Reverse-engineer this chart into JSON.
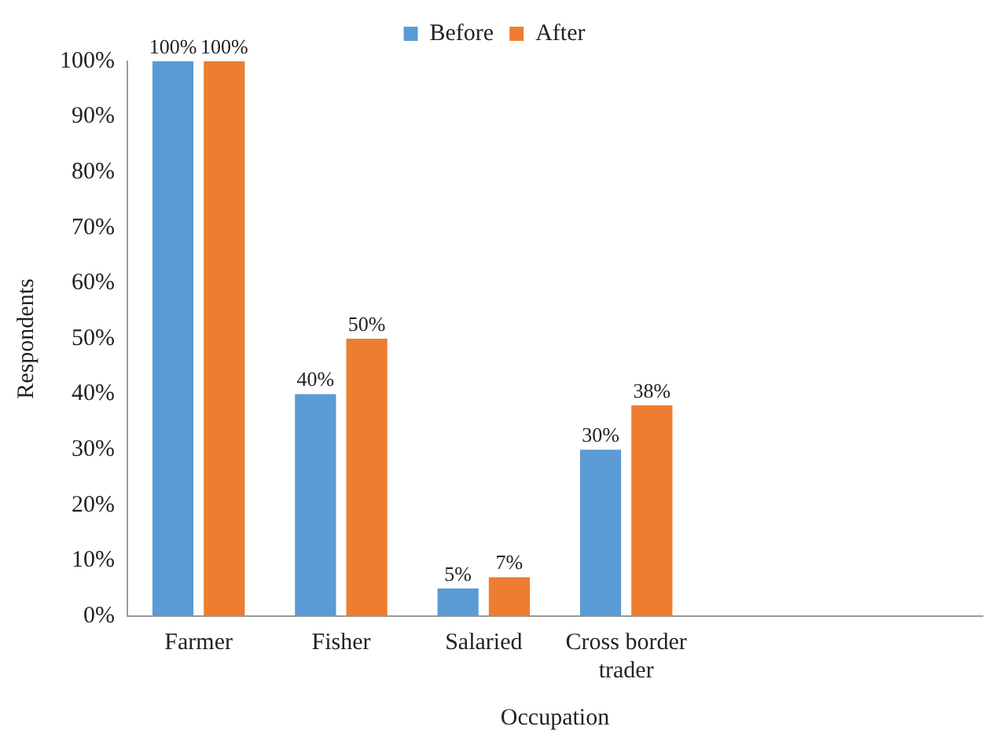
{
  "chart_data": {
    "type": "bar",
    "xlabel": "Occupation",
    "ylabel": "Respondents",
    "categories": [
      "Farmer",
      "Fisher",
      "Salaried",
      "Cross border trader",
      null,
      null
    ],
    "series": [
      {
        "name": "Before",
        "color": "#5b9bd5",
        "values": [
          100,
          40,
          5,
          30,
          null,
          null
        ],
        "value_labels": [
          "100%",
          "40%",
          "5%",
          "30%",
          null,
          null
        ]
      },
      {
        "name": "After",
        "color": "#ed7d31",
        "values": [
          100,
          50,
          7,
          38,
          null,
          null
        ],
        "value_labels": [
          "100%",
          "50%",
          "7%",
          "38%",
          null,
          null
        ]
      }
    ],
    "ylim": [
      0,
      100
    ],
    "yticks": [
      {
        "value": 0,
        "label": "0%"
      },
      {
        "value": 10,
        "label": "10%"
      },
      {
        "value": 20,
        "label": "20%"
      },
      {
        "value": 30,
        "label": "30%"
      },
      {
        "value": 40,
        "label": "40%"
      },
      {
        "value": 50,
        "label": "50%"
      },
      {
        "value": 60,
        "label": "60%"
      },
      {
        "value": 70,
        "label": "70%"
      },
      {
        "value": 80,
        "label": "80%"
      },
      {
        "value": 90,
        "label": "90%"
      },
      {
        "value": 100,
        "label": "100%"
      }
    ],
    "grid": false,
    "legend": "top"
  }
}
